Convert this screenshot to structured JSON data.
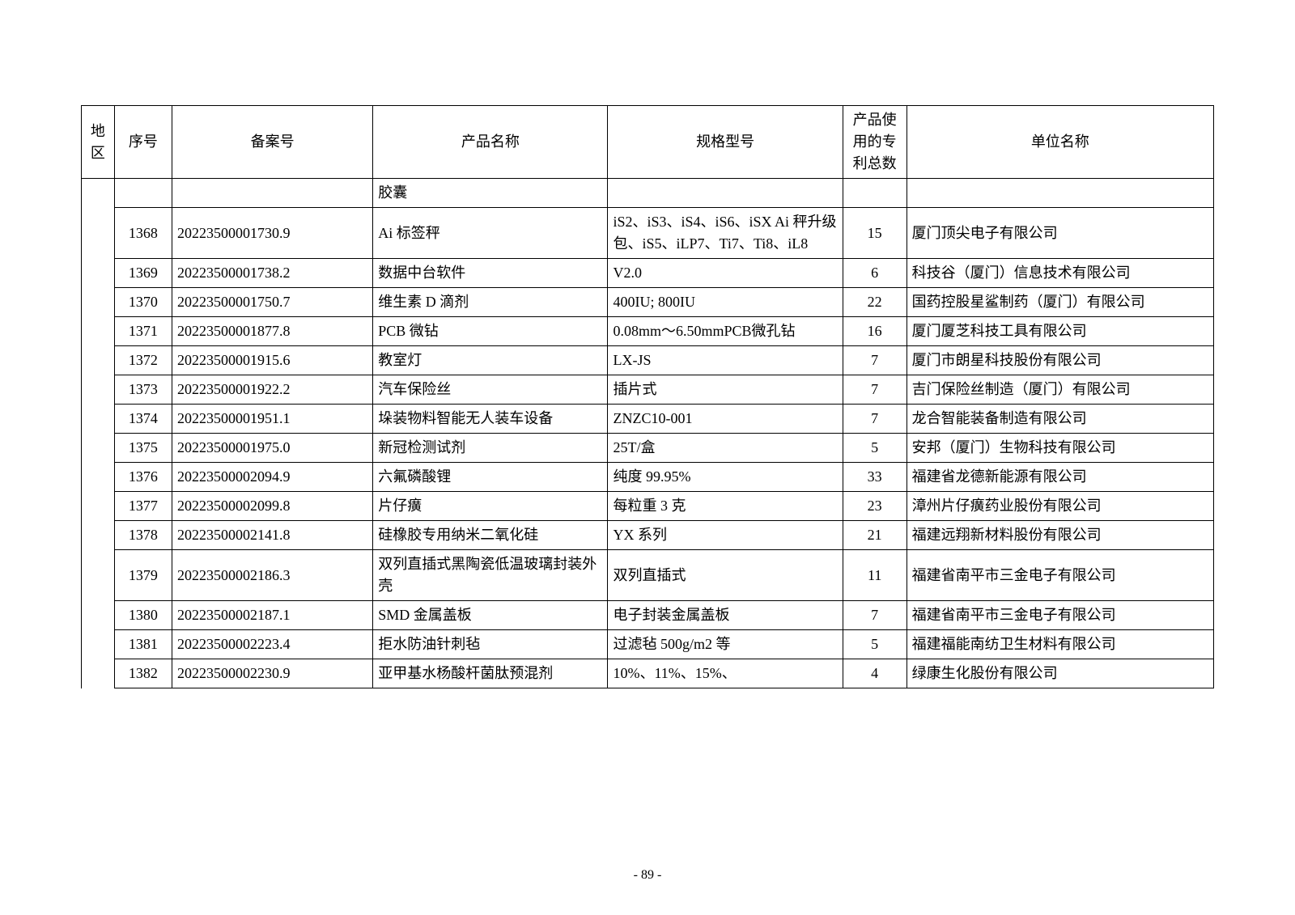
{
  "headers": {
    "region": "地区",
    "seq": "序号",
    "code": "备案号",
    "name": "产品名称",
    "spec": "规格型号",
    "patent": "产品使用的专利总数",
    "unit": "单位名称"
  },
  "rows": [
    {
      "seq": "",
      "code": "",
      "name": "胶囊",
      "spec": "",
      "patent": "",
      "unit": ""
    },
    {
      "seq": "1368",
      "code": "20223500001730.9",
      "name": "Ai 标签秤",
      "spec": "iS2、iS3、iS4、iS6、iSX Ai 秤升级包、iS5、iLP7、Ti7、Ti8、iL8",
      "patent": "15",
      "unit": "厦门顶尖电子有限公司"
    },
    {
      "seq": "1369",
      "code": "20223500001738.2",
      "name": "数据中台软件",
      "spec": "V2.0",
      "patent": "6",
      "unit": "科技谷（厦门）信息技术有限公司"
    },
    {
      "seq": "1370",
      "code": "20223500001750.7",
      "name": "维生素 D 滴剂",
      "spec": "400IU; 800IU",
      "patent": "22",
      "unit": "国药控股星鲨制药（厦门）有限公司"
    },
    {
      "seq": "1371",
      "code": "20223500001877.8",
      "name": "PCB 微钻",
      "spec": "0.08mm～6.50mmPCB微孔钻",
      "patent": "16",
      "unit": "厦门厦芝科技工具有限公司"
    },
    {
      "seq": "1372",
      "code": "20223500001915.6",
      "name": "教室灯",
      "spec": "LX-JS",
      "patent": "7",
      "unit": "厦门市朗星科技股份有限公司"
    },
    {
      "seq": "1373",
      "code": "20223500001922.2",
      "name": "汽车保险丝",
      "spec": "插片式",
      "patent": "7",
      "unit": "吉门保险丝制造（厦门）有限公司"
    },
    {
      "seq": "1374",
      "code": "20223500001951.1",
      "name": "垛装物料智能无人装车设备",
      "spec": "ZNZC10-001",
      "patent": "7",
      "unit": "龙合智能装备制造有限公司"
    },
    {
      "seq": "1375",
      "code": "20223500001975.0",
      "name": "新冠检测试剂",
      "spec": "25T/盒",
      "patent": "5",
      "unit": "安邦（厦门）生物科技有限公司"
    },
    {
      "seq": "1376",
      "code": "20223500002094.9",
      "name": "六氟磷酸锂",
      "spec": "纯度 99.95%",
      "patent": "33",
      "unit": "福建省龙德新能源有限公司"
    },
    {
      "seq": "1377",
      "code": "20223500002099.8",
      "name": "片仔癀",
      "spec": "每粒重 3 克",
      "patent": "23",
      "unit": "漳州片仔癀药业股份有限公司"
    },
    {
      "seq": "1378",
      "code": "20223500002141.8",
      "name": "硅橡胶专用纳米二氧化硅",
      "spec": "YX 系列",
      "patent": "21",
      "unit": "福建远翔新材料股份有限公司"
    },
    {
      "seq": "1379",
      "code": "20223500002186.3",
      "name": "双列直插式黑陶瓷低温玻璃封装外壳",
      "spec": "双列直插式",
      "patent": "11",
      "unit": "福建省南平市三金电子有限公司"
    },
    {
      "seq": "1380",
      "code": "20223500002187.1",
      "name": "SMD 金属盖板",
      "spec": "电子封装金属盖板",
      "patent": "7",
      "unit": "福建省南平市三金电子有限公司"
    },
    {
      "seq": "1381",
      "code": "20223500002223.4",
      "name": "拒水防油针刺毡",
      "spec": "过滤毡 500g/m2 等",
      "patent": "5",
      "unit": "福建福能南纺卫生材料有限公司"
    },
    {
      "seq": "1382",
      "code": "20223500002230.9",
      "name": "亚甲基水杨酸杆菌肽预混剂",
      "spec": "10%、11%、15%、",
      "patent": "4",
      "unit": "绿康生化股份有限公司"
    }
  ],
  "pageNumber": "- 89 -"
}
